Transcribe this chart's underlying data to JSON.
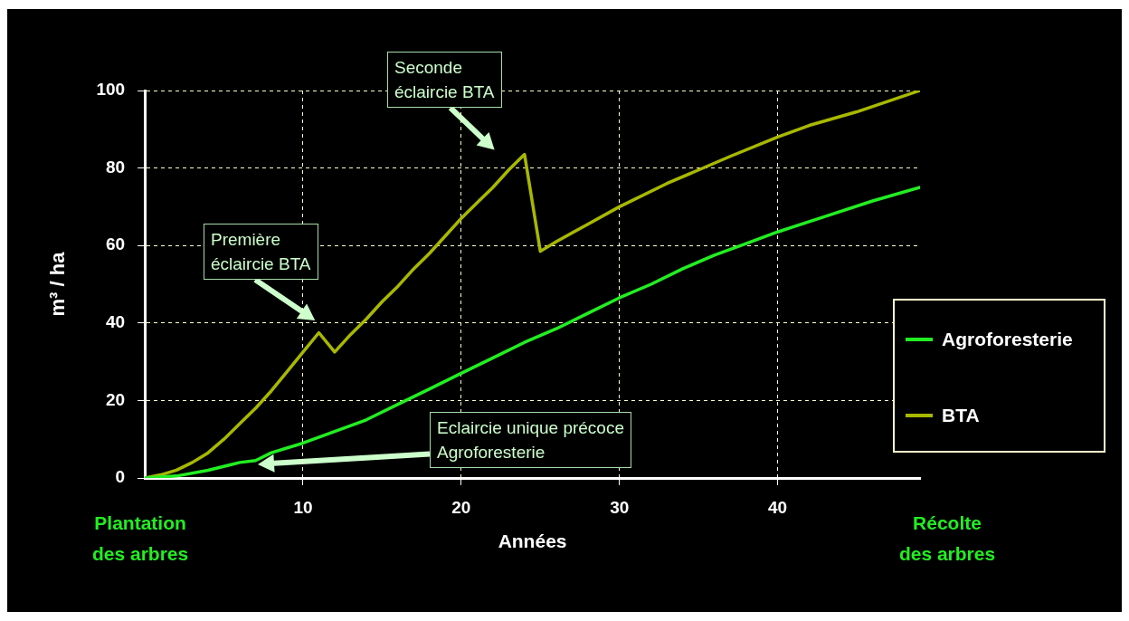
{
  "chart_data": {
    "type": "line",
    "xlabel": "Années",
    "ylabel": "m³ / ha",
    "x": [
      0,
      1,
      2,
      3,
      4,
      5,
      6,
      7,
      8,
      9,
      10,
      11,
      12,
      13,
      14,
      15,
      16,
      17,
      18,
      19,
      20,
      21,
      22,
      23,
      24,
      25,
      26,
      28,
      30,
      33,
      35,
      37,
      40,
      42,
      45,
      49
    ],
    "series": [
      {
        "name": "Agroforesterie",
        "color": "#22ee22",
        "x": [
          0,
          2,
          4,
          6,
          7,
          8,
          10,
          12,
          14,
          16,
          18,
          20,
          22,
          24,
          26,
          28,
          30,
          32,
          34,
          36,
          38,
          40,
          43,
          46,
          49
        ],
        "values": [
          0,
          0.5,
          2,
          4,
          4.5,
          6.5,
          9,
          12,
          15,
          19,
          23,
          27,
          31,
          35,
          38.5,
          42.5,
          46.5,
          50,
          54,
          57.5,
          60.5,
          63.5,
          67.5,
          71.5,
          75
        ]
      },
      {
        "name": "BTA",
        "color": "#a8b800",
        "values": [
          0,
          0.8,
          2,
          4,
          6.5,
          10,
          14,
          18,
          22.5,
          27.5,
          32.5,
          37.5,
          32.5,
          37,
          41,
          45.5,
          49.5,
          54,
          58,
          62.5,
          67,
          71,
          75,
          79.5,
          83.5,
          58.5,
          61,
          65.5,
          70,
          76,
          79.5,
          83,
          88,
          91,
          94.5,
          100
        ]
      }
    ],
    "xlim": [
      0,
      49
    ],
    "xticks": [
      10,
      20,
      30,
      40
    ],
    "ylim": [
      0,
      100
    ],
    "yticks": [
      0,
      20,
      40,
      60,
      80,
      100
    ],
    "grid": true,
    "legend": "right",
    "marker": "none",
    "line_style": "solid",
    "annotations": [
      "Première\néclaircie BTA",
      "Seconde\néclaircie BTA",
      "Eclaircie unique précoce\nAgroforesterie",
      "Plantation\ndes arbres",
      "Récolte\ndes arbres"
    ]
  }
}
